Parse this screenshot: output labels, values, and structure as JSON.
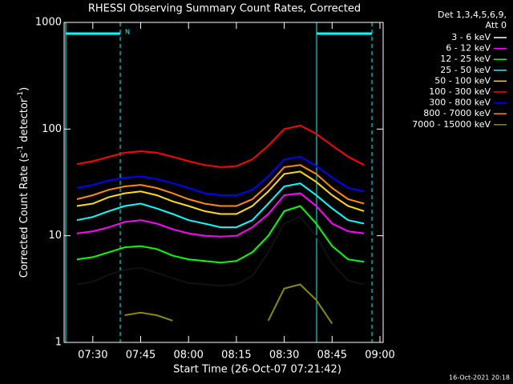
{
  "chart_data": {
    "type": "line",
    "title": "RHESSI Observing Summary Count Rates, Corrected",
    "xlabel": "Start Time (26-Oct-07 07:21:42)",
    "ylabel": [
      "Corrected Count Rate (s",
      "-1",
      " detector",
      "-1",
      ")"
    ],
    "legend_header": [
      "Det 1,3,4,5,6,9,",
      "Att 0"
    ],
    "annotation": "N",
    "footer": "16-Oct-2021 20:18",
    "log_y": true,
    "xlim": [
      "07:21",
      "09:01"
    ],
    "ylim": [
      1,
      1000
    ],
    "xticks": [
      "07:30",
      "07:45",
      "08:00",
      "08:15",
      "08:30",
      "08:45",
      "09:00"
    ],
    "yticks": [
      1,
      10,
      100,
      1000
    ],
    "x": [
      "07:25",
      "07:30",
      "07:35",
      "07:40",
      "07:45",
      "07:50",
      "07:55",
      "08:00",
      "08:05",
      "08:10",
      "08:15",
      "08:20",
      "08:25",
      "08:30",
      "08:35",
      "08:40",
      "08:45",
      "08:50",
      "08:55"
    ],
    "series": [
      {
        "name": "3 - 6 keV",
        "color": "#000000",
        "values": [
          3.5,
          3.7,
          4.3,
          4.8,
          5,
          4.5,
          4,
          3.6,
          3.5,
          3.4,
          3.5,
          4.2,
          7,
          13,
          15,
          10,
          5.5,
          3.8,
          3.5
        ]
      },
      {
        "name": "6 - 12 keV",
        "color": "#ff00ff",
        "values": [
          10.5,
          11,
          12,
          13.5,
          14,
          13,
          11.5,
          10.5,
          10,
          9.8,
          10,
          12,
          16,
          24,
          25,
          19,
          13,
          11,
          10.5
        ]
      },
      {
        "name": "12 - 25 keV",
        "color": "#00ff00",
        "values": [
          6,
          6.3,
          7,
          7.8,
          8,
          7.5,
          6.5,
          6,
          5.8,
          5.6,
          5.8,
          7,
          10,
          17,
          19,
          13,
          8,
          6,
          5.7
        ]
      },
      {
        "name": "25 - 50 keV",
        "color": "#00ffff",
        "values": [
          14,
          15,
          17,
          19,
          20,
          18,
          16,
          14,
          13,
          12,
          12,
          14,
          20,
          29,
          31,
          24,
          18,
          14,
          13
        ]
      },
      {
        "name": "50 - 100 keV",
        "color": "#ffdd00",
        "values": [
          19,
          20,
          23,
          25,
          26,
          24,
          21,
          19,
          17,
          16,
          16,
          19,
          26,
          38,
          40,
          32,
          24,
          19,
          17
        ]
      },
      {
        "name": "100 - 300 keV",
        "color": "#ff0000",
        "values": [
          47,
          50,
          55,
          60,
          62,
          60,
          55,
          50,
          46,
          44,
          45,
          52,
          70,
          100,
          108,
          90,
          70,
          55,
          46
        ]
      },
      {
        "name": "300 - 800 keV",
        "color": "#0000ff",
        "values": [
          28,
          30,
          33,
          35,
          36,
          34,
          31,
          28,
          25,
          24,
          24,
          27,
          36,
          52,
          55,
          45,
          35,
          28,
          26
        ]
      },
      {
        "name": "800 - 7000 keV",
        "color": "#ff8c00",
        "values": [
          22,
          24,
          27,
          29,
          30,
          28,
          25,
          22,
          20,
          19,
          19,
          22,
          30,
          44,
          46,
          38,
          28,
          22,
          20
        ]
      },
      {
        "name": "7000 - 15000 keV",
        "color": "#8b8b00",
        "values": [
          null,
          null,
          null,
          1.8,
          1.9,
          1.8,
          1.6,
          null,
          null,
          null,
          null,
          null,
          1.6,
          3.2,
          3.5,
          2.5,
          1.5,
          null,
          null
        ]
      }
    ]
  }
}
